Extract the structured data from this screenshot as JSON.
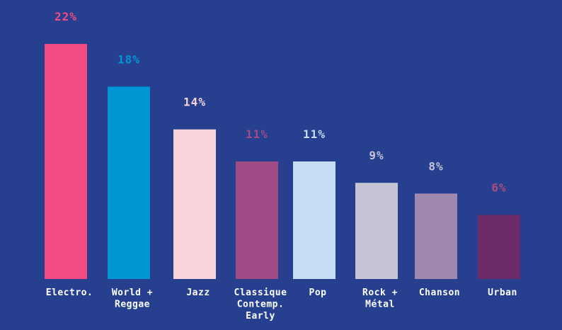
{
  "chart_data": {
    "type": "bar",
    "title": "",
    "xlabel": "",
    "ylabel": "",
    "ylim": [
      0,
      22
    ],
    "grid": false,
    "unit": "%",
    "categories": [
      [
        "Electro."
      ],
      [
        "World +",
        "Reggae"
      ],
      [
        "Jazz"
      ],
      [
        "Classique",
        "Contemp.",
        "Early"
      ],
      [
        "Pop"
      ],
      [
        "Rock +",
        "Métal"
      ],
      [
        "Chanson"
      ],
      [
        "Urban"
      ]
    ],
    "values": [
      22,
      18,
      14,
      11,
      11,
      9,
      8,
      6
    ],
    "value_labels": [
      "22%",
      "18%",
      "14%",
      "11%",
      "11%",
      "9%",
      "8%",
      "6%"
    ],
    "bar_colors": [
      "#f24c82",
      "#0096d6",
      "#fbd3db",
      "#a04a86",
      "#c6ddf3",
      "#c6c5d6",
      "#9f88b0",
      "#6d2a68"
    ],
    "label_colors": [
      "#f24c82",
      "#0096d6",
      "#fbd3db",
      "#a04a86",
      "#c6ddf3",
      "#c6c5d6",
      "#c6c5d6",
      "#b04b7e"
    ]
  }
}
